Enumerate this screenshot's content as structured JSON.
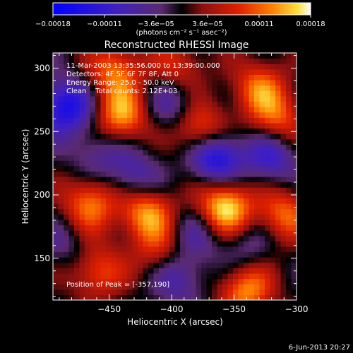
{
  "chart_data": {
    "type": "heatmap",
    "title": "Reconstructed RHESSI Image",
    "xlabel": "Heliocentric X (arcsec)",
    "ylabel": "Heliocentric Y (arcsec)",
    "xlim": [
      -495,
      -300
    ],
    "ylim": [
      117,
      312
    ],
    "x_ticks": [
      -450,
      -400,
      -350,
      -300
    ],
    "y_ticks": [
      150,
      200,
      250,
      300
    ],
    "colorbar": {
      "range": [
        -0.00018,
        0.00018
      ],
      "ticks": [
        "-0.00018",
        "-0.00011",
        "-3.6e-05",
        "3.6e-05",
        "0.00011",
        "0.00018"
      ],
      "unit_label": "(photons cm⁻² s⁻¹ asec⁻²)"
    },
    "annotations": [
      "11-Mar-2003 13:35:56.000 to 13:39:00.000",
      "Detectors: 4F 5F 6F 7F 8F, Att 0",
      "Energy Range: 25.0 - 50.0 keV",
      "Clean    Total counts: 2.12E+03"
    ],
    "peak_text": "Position of Peak = [-357,190]",
    "sources": [
      {
        "x": -357,
        "y": 190,
        "value": 0.00018
      },
      {
        "x": -440,
        "y": 263,
        "value": 0.000135
      },
      {
        "x": -420,
        "y": 186,
        "value": 0.00014
      },
      {
        "x": -375,
        "y": 250,
        "value": 0.00013
      },
      {
        "x": -465,
        "y": 195,
        "value": 0.00012
      },
      {
        "x": -330,
        "y": 285,
        "value": 0.00011
      },
      {
        "x": -315,
        "y": 260,
        "value": 0.0001
      },
      {
        "x": -340,
        "y": 125,
        "value": 0.00013
      },
      {
        "x": -445,
        "y": 298,
        "value": 0.000115
      },
      {
        "x": -395,
        "y": 300,
        "value": 8e-05
      },
      {
        "x": -310,
        "y": 185,
        "value": 0.00011
      },
      {
        "x": -410,
        "y": 155,
        "value": 7e-05
      },
      {
        "x": -460,
        "y": 140,
        "value": 0.0001
      },
      {
        "x": -475,
        "y": 170,
        "value": 6e-05
      },
      {
        "x": -365,
        "y": 232,
        "value": -0.00017
      },
      {
        "x": -485,
        "y": 270,
        "value": -0.00015
      },
      {
        "x": -430,
        "y": 215,
        "value": -8e-05
      },
      {
        "x": -400,
        "y": 275,
        "value": -7e-05
      },
      {
        "x": -480,
        "y": 165,
        "value": -9e-05
      },
      {
        "x": -320,
        "y": 230,
        "value": -0.0001
      },
      {
        "x": -380,
        "y": 170,
        "value": -6e-05
      },
      {
        "x": -395,
        "y": 135,
        "value": -8e-05
      },
      {
        "x": -460,
        "y": 232,
        "value": -6e-05
      },
      {
        "x": -340,
        "y": 160,
        "value": -5e-05
      }
    ]
  },
  "footer_timestamp": "6-Jun-2013 20:27"
}
